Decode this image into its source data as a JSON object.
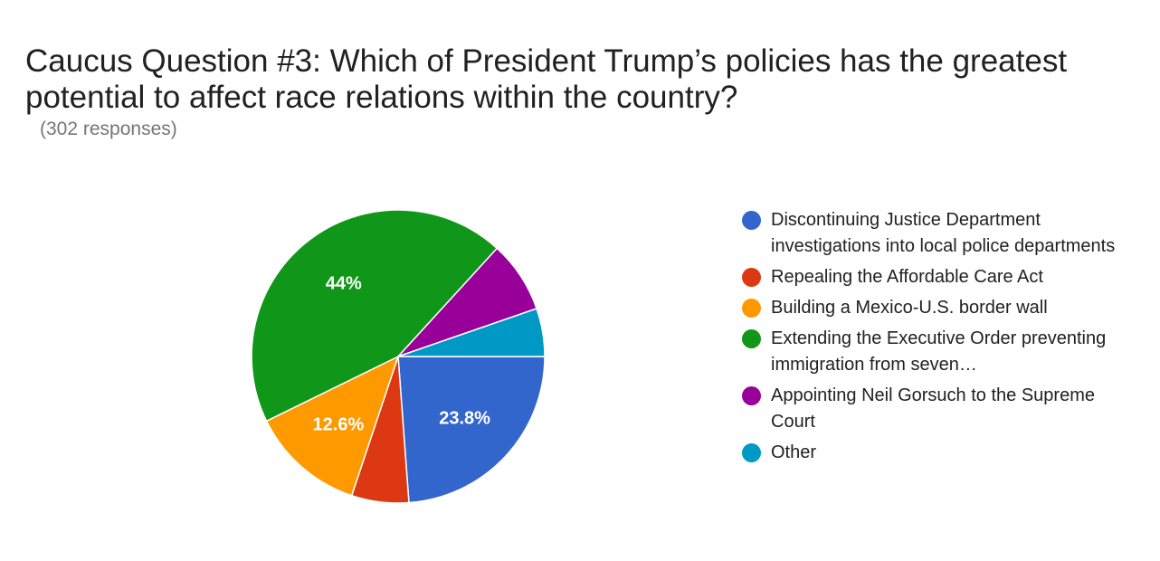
{
  "header": {
    "title": "Caucus Question #3: Which of President Trump’s policies has the greatest potential to affect race relations within the country?",
    "subtitle": "(302 responses)"
  },
  "chart_data": {
    "type": "pie",
    "start_angle_deg": 90,
    "direction": "clockwise",
    "legend_position": "right",
    "slices": [
      {
        "label": "Discontinuing Justice Department investigations into local police departments",
        "value": 23.8,
        "display": "23.8%",
        "color": "#3366cc"
      },
      {
        "label": "Repealing the Affordable Care Act",
        "value": 6.3,
        "display": "",
        "color": "#dc3912"
      },
      {
        "label": "Building a Mexico-U.S. border wall",
        "value": 12.6,
        "display": "12.6%",
        "color": "#ff9900"
      },
      {
        "label": "Extending the Executive Order preventing immigration from seven…",
        "value": 44.0,
        "display": "44%",
        "color": "#109618"
      },
      {
        "label": "Appointing Neil Gorsuch to the Supreme Court",
        "value": 7.9,
        "display": "",
        "color": "#990099"
      },
      {
        "label": "Other",
        "value": 5.3,
        "display": "",
        "color": "#0099c6"
      }
    ]
  }
}
